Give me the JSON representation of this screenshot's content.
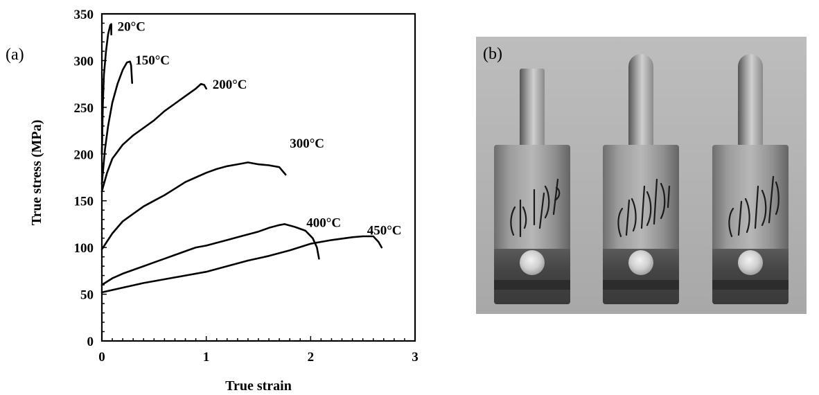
{
  "panel_labels": {
    "a": "(a)",
    "b": "(b)"
  },
  "chart_data": {
    "type": "line",
    "title": "",
    "xlabel": "True strain",
    "ylabel": "True stress (MPa)",
    "xlim": [
      0,
      3
    ],
    "ylim": [
      0,
      350
    ],
    "x_ticks": [
      0,
      1,
      2,
      3
    ],
    "y_ticks": [
      0,
      50,
      100,
      150,
      200,
      250,
      300,
      350
    ],
    "grid": false,
    "legend": "none",
    "series": [
      {
        "name": "20°C",
        "label_at": [
          0.15,
          332
        ],
        "points": [
          [
            0,
            200
          ],
          [
            0.01,
            255
          ],
          [
            0.02,
            285
          ],
          [
            0.04,
            310
          ],
          [
            0.06,
            328
          ],
          [
            0.08,
            338
          ],
          [
            0.09,
            339
          ],
          [
            0.09,
            328
          ]
        ]
      },
      {
        "name": "150°C",
        "label_at": [
          0.32,
          296
        ],
        "points": [
          [
            0,
            168
          ],
          [
            0.03,
            205
          ],
          [
            0.06,
            230
          ],
          [
            0.1,
            255
          ],
          [
            0.15,
            275
          ],
          [
            0.2,
            290
          ],
          [
            0.24,
            298
          ],
          [
            0.27,
            299
          ],
          [
            0.28,
            295
          ],
          [
            0.29,
            276
          ]
        ]
      },
      {
        "name": "200°C",
        "label_at": [
          1.06,
          270
        ],
        "points": [
          [
            0,
            160
          ],
          [
            0.05,
            180
          ],
          [
            0.1,
            195
          ],
          [
            0.2,
            210
          ],
          [
            0.3,
            220
          ],
          [
            0.4,
            228
          ],
          [
            0.5,
            236
          ],
          [
            0.6,
            246
          ],
          [
            0.7,
            254
          ],
          [
            0.8,
            262
          ],
          [
            0.9,
            270
          ],
          [
            0.95,
            275
          ],
          [
            0.98,
            274
          ],
          [
            1.0,
            270
          ]
        ]
      },
      {
        "name": "300°C",
        "label_at": [
          1.8,
          207
        ],
        "points": [
          [
            0,
            98
          ],
          [
            0.1,
            115
          ],
          [
            0.2,
            128
          ],
          [
            0.3,
            136
          ],
          [
            0.4,
            144
          ],
          [
            0.5,
            150
          ],
          [
            0.6,
            156
          ],
          [
            0.7,
            163
          ],
          [
            0.8,
            170
          ],
          [
            0.9,
            175
          ],
          [
            1.0,
            180
          ],
          [
            1.1,
            184
          ],
          [
            1.2,
            187
          ],
          [
            1.3,
            189
          ],
          [
            1.4,
            191
          ],
          [
            1.5,
            189
          ],
          [
            1.6,
            188
          ],
          [
            1.7,
            186
          ],
          [
            1.76,
            178
          ]
        ]
      },
      {
        "name": "400°C",
        "label_at": [
          1.96,
          122
        ],
        "points": [
          [
            0,
            60
          ],
          [
            0.1,
            67
          ],
          [
            0.2,
            72
          ],
          [
            0.3,
            76
          ],
          [
            0.4,
            80
          ],
          [
            0.5,
            84
          ],
          [
            0.6,
            88
          ],
          [
            0.7,
            92
          ],
          [
            0.8,
            96
          ],
          [
            0.9,
            100
          ],
          [
            1.0,
            102
          ],
          [
            1.1,
            105
          ],
          [
            1.2,
            108
          ],
          [
            1.3,
            111
          ],
          [
            1.4,
            114
          ],
          [
            1.5,
            117
          ],
          [
            1.6,
            121
          ],
          [
            1.7,
            124
          ],
          [
            1.75,
            125
          ],
          [
            1.85,
            122
          ],
          [
            1.95,
            118
          ],
          [
            2.02,
            110
          ],
          [
            2.06,
            100
          ],
          [
            2.08,
            88
          ]
        ]
      },
      {
        "name": "450°C",
        "label_at": [
          2.54,
          114
        ],
        "points": [
          [
            0,
            52
          ],
          [
            0.2,
            57
          ],
          [
            0.4,
            62
          ],
          [
            0.6,
            66
          ],
          [
            0.8,
            70
          ],
          [
            1.0,
            74
          ],
          [
            1.2,
            80
          ],
          [
            1.4,
            86
          ],
          [
            1.6,
            91
          ],
          [
            1.8,
            97
          ],
          [
            2.0,
            104
          ],
          [
            2.2,
            108
          ],
          [
            2.4,
            111
          ],
          [
            2.5,
            112
          ],
          [
            2.6,
            112
          ],
          [
            2.65,
            106
          ],
          [
            2.68,
            100
          ]
        ]
      }
    ]
  },
  "photo": {
    "description_icon": "specimen-photo",
    "specimen_count": 3
  }
}
